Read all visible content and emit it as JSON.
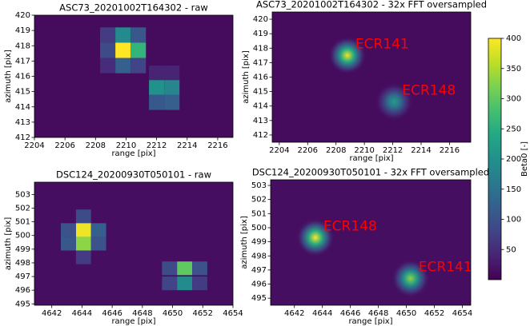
{
  "chart_data": [
    {
      "type": "heatmap",
      "title": "ASC73_20201002T164302 - raw",
      "xlabel": "range [pix]",
      "ylabel": "azimuth [pix]",
      "xlim": [
        2204,
        2217
      ],
      "ylim": [
        412,
        420
      ],
      "xticks": [
        2204,
        2206,
        2208,
        2210,
        2212,
        2214,
        2216
      ],
      "yticks": [
        412,
        413,
        414,
        415,
        416,
        417,
        418,
        419,
        420
      ],
      "background": 12,
      "cells": {
        "x": [
          2208.8,
          2209.8,
          2210.8,
          2208.8,
          2209.8,
          2210.8,
          2208.8,
          2209.8,
          2210.8,
          2212,
          2213,
          2212,
          2213,
          2212,
          2213
        ],
        "y": [
          418.7,
          418.7,
          418.7,
          417.7,
          417.7,
          417.7,
          416.7,
          416.7,
          416.7,
          416.2,
          416.2,
          415.25,
          415.25,
          414.3,
          414.3
        ],
        "values": [
          70,
          190,
          110,
          90,
          400,
          260,
          50,
          120,
          80,
          40,
          40,
          200,
          180,
          110,
          120
        ]
      }
    },
    {
      "type": "density",
      "title": "ASC73_20201002T164302 - 32x FFT oversampled",
      "xlabel": "range [pix]",
      "ylabel": "azimuth [pix]",
      "xlim": [
        2203.5,
        2217.5
      ],
      "ylim": [
        411.5,
        420.5
      ],
      "xticks": [
        2204,
        2206,
        2208,
        2210,
        2212,
        2214,
        2216
      ],
      "yticks": [
        412,
        413,
        414,
        415,
        416,
        417,
        418,
        419,
        420
      ],
      "background": 12,
      "x": [
        2208.8,
        2212.1
      ],
      "y": [
        417.5,
        414.3
      ],
      "values": [
        390,
        220
      ],
      "annotations": [
        "ECR141",
        "ECR148"
      ],
      "annotation_color": "#ff0000"
    },
    {
      "type": "heatmap",
      "title": "DSC124_20200930T050101 - raw",
      "xlabel": "range [pix]",
      "ylabel": "azimuth [pix]",
      "xlim": [
        4640.85,
        4654
      ],
      "ylim": [
        494.9,
        503.9
      ],
      "xticks": [
        4642,
        4644,
        4646,
        4648,
        4650,
        4652,
        4654
      ],
      "yticks": [
        495,
        496,
        497,
        498,
        499,
        500,
        501,
        502,
        503
      ],
      "background": 15,
      "cells": {
        "x": [
          4644.1,
          4644.1,
          4644.1,
          4644.1,
          4643.1,
          4643.1,
          4645.1,
          4645.1,
          4649.8,
          4650.8,
          4651.8,
          4649.8,
          4650.8,
          4651.8
        ],
        "y": [
          501.4,
          500.4,
          499.4,
          498.4,
          500.4,
          499.4,
          500.4,
          499.4,
          497.6,
          497.6,
          497.6,
          496.5,
          496.5,
          496.5
        ],
        "values": [
          90,
          390,
          330,
          70,
          100,
          110,
          120,
          100,
          90,
          300,
          100,
          80,
          190,
          70
        ]
      }
    },
    {
      "type": "density",
      "title": "DSC124_20200930T050101 - 32x FFT oversampled",
      "xlabel": "range [pix]",
      "ylabel": "azimuth [pix]",
      "xlim": [
        4640.3,
        4654.6
      ],
      "ylim": [
        494.5,
        503.4
      ],
      "xticks": [
        4642,
        4644,
        4646,
        4648,
        4650,
        4652,
        4654
      ],
      "yticks": [
        495,
        496,
        497,
        498,
        499,
        500,
        501,
        502,
        503
      ],
      "background": 15,
      "x": [
        4643.5,
        4650.3
      ],
      "y": [
        499.3,
        496.4
      ],
      "values": [
        400,
        330
      ],
      "annotations": [
        "ECR148",
        "ECR141"
      ],
      "annotation_color": "#ff0000"
    }
  ],
  "colorbar": {
    "label": "Beta0 [-]",
    "lim": [
      0,
      400
    ],
    "ticks": [
      50,
      100,
      150,
      200,
      250,
      300,
      350,
      400
    ]
  }
}
